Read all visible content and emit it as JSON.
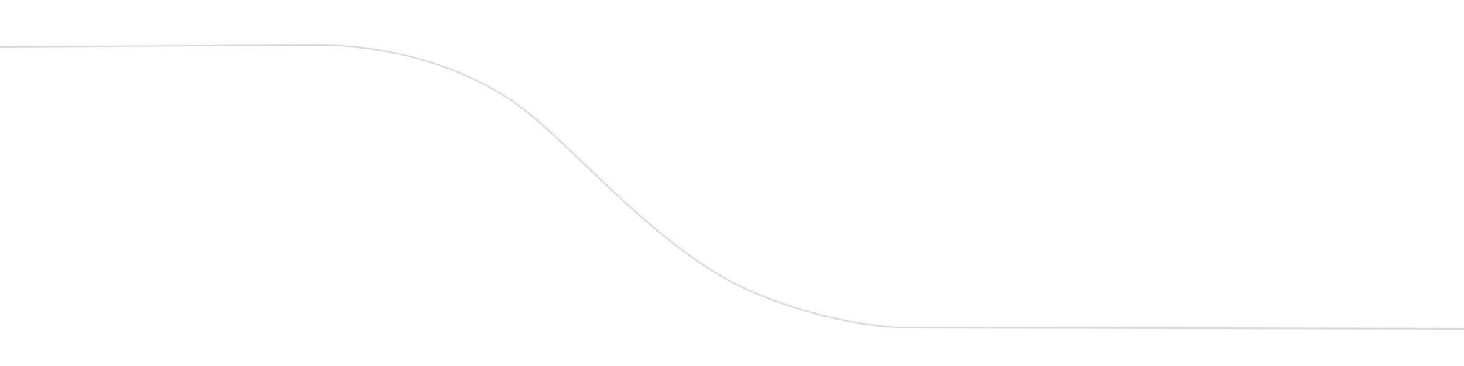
{
  "background_color": "#ffffff",
  "stroke_color": "#d9d9d9",
  "shadow_color": "#9a9a9a"
}
